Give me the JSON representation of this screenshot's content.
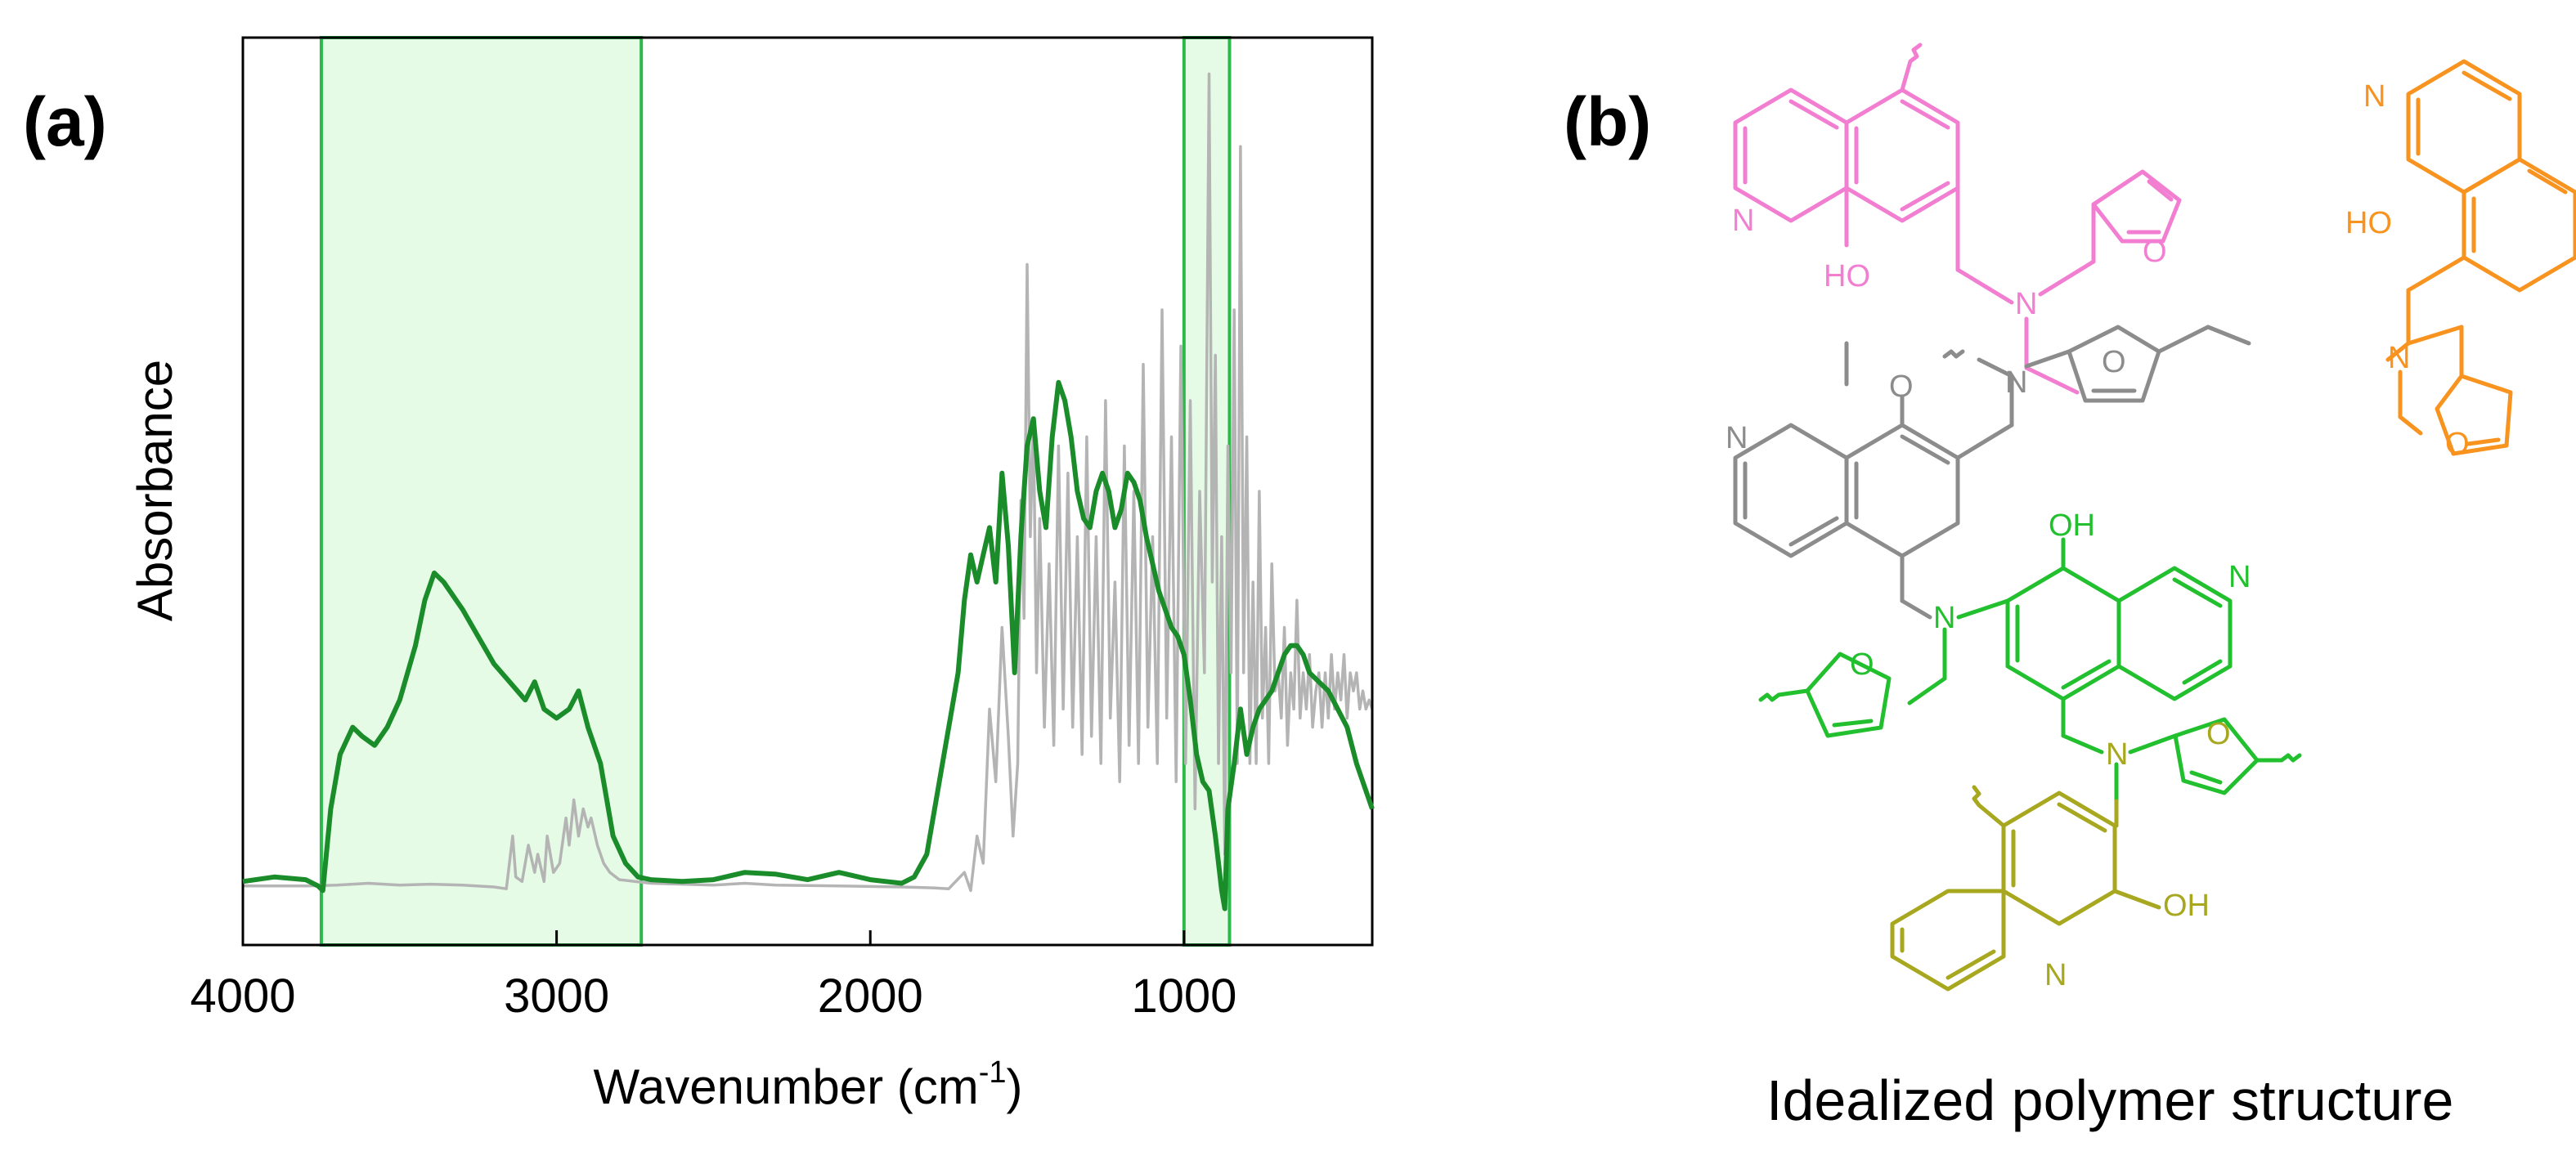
{
  "panel_a": {
    "label": "(a)",
    "chart_data": {
      "type": "line",
      "xlabel": "Wavenumber (cm",
      "xlabel_sup": "-1",
      "xlabel_close": ")",
      "ylabel": "Absorbance",
      "xlim": [
        4000,
        400
      ],
      "x_reversed": true,
      "ylim": [
        0,
        1.0
      ],
      "x_ticks": [
        4000,
        3000,
        2000,
        1000
      ],
      "x_tick_labels": [
        "4000",
        "3000",
        "2000",
        "1000"
      ],
      "y_ticks_shown": false,
      "grid": false,
      "highlight_bands": [
        {
          "x_from": 3750,
          "x_to": 2730,
          "color": "#e6fbe6",
          "edge": "#2db84b"
        },
        {
          "x_from": 1000,
          "x_to": 855,
          "color": "#e6fbe6",
          "edge": "#2db84b"
        }
      ],
      "series": [
        {
          "color": "#1a8c2a",
          "points": [
            [
              4000,
              0.07
            ],
            [
              3900,
              0.075
            ],
            [
              3800,
              0.072
            ],
            [
              3760,
              0.065
            ],
            [
              3745,
              0.06
            ],
            [
              3720,
              0.15
            ],
            [
              3690,
              0.21
            ],
            [
              3650,
              0.24
            ],
            [
              3620,
              0.23
            ],
            [
              3580,
              0.22
            ],
            [
              3540,
              0.24
            ],
            [
              3500,
              0.27
            ],
            [
              3450,
              0.33
            ],
            [
              3420,
              0.38
            ],
            [
              3390,
              0.41
            ],
            [
              3360,
              0.4
            ],
            [
              3300,
              0.37
            ],
            [
              3250,
              0.34
            ],
            [
              3200,
              0.31
            ],
            [
              3150,
              0.29
            ],
            [
              3100,
              0.27
            ],
            [
              3070,
              0.29
            ],
            [
              3040,
              0.26
            ],
            [
              3000,
              0.25
            ],
            [
              2960,
              0.26
            ],
            [
              2930,
              0.28
            ],
            [
              2900,
              0.24
            ],
            [
              2860,
              0.2
            ],
            [
              2820,
              0.12
            ],
            [
              2780,
              0.09
            ],
            [
              2740,
              0.075
            ],
            [
              2700,
              0.072
            ],
            [
              2600,
              0.07
            ],
            [
              2500,
              0.072
            ],
            [
              2400,
              0.08
            ],
            [
              2300,
              0.078
            ],
            [
              2200,
              0.072
            ],
            [
              2100,
              0.08
            ],
            [
              2000,
              0.072
            ],
            [
              1950,
              0.07
            ],
            [
              1900,
              0.068
            ],
            [
              1860,
              0.075
            ],
            [
              1820,
              0.1
            ],
            [
              1790,
              0.16
            ],
            [
              1760,
              0.22
            ],
            [
              1740,
              0.26
            ],
            [
              1720,
              0.3
            ],
            [
              1700,
              0.38
            ],
            [
              1680,
              0.43
            ],
            [
              1660,
              0.4
            ],
            [
              1640,
              0.43
            ],
            [
              1620,
              0.46
            ],
            [
              1600,
              0.4
            ],
            [
              1580,
              0.52
            ],
            [
              1560,
              0.44
            ],
            [
              1540,
              0.3
            ],
            [
              1520,
              0.45
            ],
            [
              1500,
              0.55
            ],
            [
              1480,
              0.58
            ],
            [
              1460,
              0.5
            ],
            [
              1440,
              0.46
            ],
            [
              1420,
              0.56
            ],
            [
              1400,
              0.62
            ],
            [
              1380,
              0.6
            ],
            [
              1360,
              0.56
            ],
            [
              1340,
              0.5
            ],
            [
              1320,
              0.47
            ],
            [
              1300,
              0.46
            ],
            [
              1280,
              0.5
            ],
            [
              1260,
              0.52
            ],
            [
              1240,
              0.5
            ],
            [
              1220,
              0.46
            ],
            [
              1200,
              0.48
            ],
            [
              1180,
              0.52
            ],
            [
              1160,
              0.51
            ],
            [
              1140,
              0.49
            ],
            [
              1120,
              0.45
            ],
            [
              1100,
              0.42
            ],
            [
              1080,
              0.39
            ],
            [
              1060,
              0.37
            ],
            [
              1040,
              0.35
            ],
            [
              1020,
              0.34
            ],
            [
              1000,
              0.32
            ],
            [
              980,
              0.27
            ],
            [
              960,
              0.21
            ],
            [
              940,
              0.18
            ],
            [
              920,
              0.17
            ],
            [
              900,
              0.12
            ],
            [
              880,
              0.06
            ],
            [
              870,
              0.04
            ],
            [
              860,
              0.15
            ],
            [
              840,
              0.2
            ],
            [
              820,
              0.26
            ],
            [
              800,
              0.21
            ],
            [
              780,
              0.24
            ],
            [
              760,
              0.26
            ],
            [
              740,
              0.27
            ],
            [
              720,
              0.28
            ],
            [
              700,
              0.3
            ],
            [
              680,
              0.32
            ],
            [
              660,
              0.33
            ],
            [
              640,
              0.33
            ],
            [
              620,
              0.32
            ],
            [
              600,
              0.3
            ],
            [
              570,
              0.29
            ],
            [
              540,
              0.28
            ],
            [
              510,
              0.26
            ],
            [
              480,
              0.24
            ],
            [
              450,
              0.2
            ],
            [
              420,
              0.17
            ],
            [
              400,
              0.15
            ]
          ]
        },
        {
          "color": "#b4b4b4",
          "points": [
            [
              4000,
              0.065
            ],
            [
              3800,
              0.065
            ],
            [
              3700,
              0.066
            ],
            [
              3600,
              0.068
            ],
            [
              3500,
              0.066
            ],
            [
              3400,
              0.067
            ],
            [
              3300,
              0.066
            ],
            [
              3200,
              0.064
            ],
            [
              3160,
              0.062
            ],
            [
              3140,
              0.12
            ],
            [
              3130,
              0.075
            ],
            [
              3110,
              0.07
            ],
            [
              3090,
              0.11
            ],
            [
              3070,
              0.08
            ],
            [
              3060,
              0.1
            ],
            [
              3040,
              0.07
            ],
            [
              3030,
              0.12
            ],
            [
              3010,
              0.08
            ],
            [
              2990,
              0.09
            ],
            [
              2970,
              0.14
            ],
            [
              2960,
              0.11
            ],
            [
              2945,
              0.16
            ],
            [
              2930,
              0.12
            ],
            [
              2915,
              0.15
            ],
            [
              2900,
              0.13
            ],
            [
              2890,
              0.14
            ],
            [
              2870,
              0.11
            ],
            [
              2850,
              0.09
            ],
            [
              2830,
              0.08
            ],
            [
              2800,
              0.072
            ],
            [
              2700,
              0.068
            ],
            [
              2500,
              0.066
            ],
            [
              2400,
              0.068
            ],
            [
              2300,
              0.066
            ],
            [
              2100,
              0.065
            ],
            [
              1900,
              0.064
            ],
            [
              1800,
              0.063
            ],
            [
              1750,
              0.062
            ],
            [
              1700,
              0.08
            ],
            [
              1680,
              0.06
            ],
            [
              1660,
              0.12
            ],
            [
              1640,
              0.09
            ],
            [
              1620,
              0.26
            ],
            [
              1600,
              0.18
            ],
            [
              1580,
              0.35
            ],
            [
              1560,
              0.23
            ],
            [
              1545,
              0.12
            ],
            [
              1530,
              0.2
            ],
            [
              1520,
              0.49
            ],
            [
              1510,
              0.36
            ],
            [
              1500,
              0.75
            ],
            [
              1490,
              0.45
            ],
            [
              1480,
              0.58
            ],
            [
              1470,
              0.3
            ],
            [
              1460,
              0.47
            ],
            [
              1445,
              0.24
            ],
            [
              1430,
              0.42
            ],
            [
              1415,
              0.22
            ],
            [
              1400,
              0.55
            ],
            [
              1385,
              0.26
            ],
            [
              1370,
              0.52
            ],
            [
              1355,
              0.24
            ],
            [
              1340,
              0.45
            ],
            [
              1325,
              0.21
            ],
            [
              1310,
              0.56
            ],
            [
              1295,
              0.23
            ],
            [
              1280,
              0.45
            ],
            [
              1265,
              0.2
            ],
            [
              1250,
              0.6
            ],
            [
              1235,
              0.25
            ],
            [
              1220,
              0.4
            ],
            [
              1205,
              0.18
            ],
            [
              1190,
              0.55
            ],
            [
              1175,
              0.22
            ],
            [
              1160,
              0.5
            ],
            [
              1145,
              0.2
            ],
            [
              1130,
              0.64
            ],
            [
              1115,
              0.24
            ],
            [
              1100,
              0.45
            ],
            [
              1085,
              0.2
            ],
            [
              1070,
              0.7
            ],
            [
              1055,
              0.25
            ],
            [
              1040,
              0.56
            ],
            [
              1025,
              0.18
            ],
            [
              1010,
              0.66
            ],
            [
              995,
              0.2
            ],
            [
              980,
              0.6
            ],
            [
              965,
              0.15
            ],
            [
              950,
              0.5
            ],
            [
              935,
              0.3
            ],
            [
              920,
              0.96
            ],
            [
              910,
              0.4
            ],
            [
              900,
              0.65
            ],
            [
              890,
              0.2
            ],
            [
              880,
              0.45
            ],
            [
              870,
              0.1
            ],
            [
              860,
              0.55
            ],
            [
              850,
              0.3
            ],
            [
              840,
              0.7
            ],
            [
              830,
              0.2
            ],
            [
              820,
              0.88
            ],
            [
              810,
              0.3
            ],
            [
              800,
              0.56
            ],
            [
              790,
              0.2
            ],
            [
              780,
              0.4
            ],
            [
              770,
              0.2
            ],
            [
              760,
              0.5
            ],
            [
              750,
              0.25
            ],
            [
              740,
              0.35
            ],
            [
              730,
              0.2
            ],
            [
              720,
              0.42
            ],
            [
              710,
              0.28
            ],
            [
              700,
              0.3
            ],
            [
              690,
              0.25
            ],
            [
              680,
              0.35
            ],
            [
              670,
              0.22
            ],
            [
              660,
              0.3
            ],
            [
              650,
              0.26
            ],
            [
              640,
              0.38
            ],
            [
              630,
              0.25
            ],
            [
              620,
              0.3
            ],
            [
              610,
              0.26
            ],
            [
              600,
              0.32
            ],
            [
              590,
              0.24
            ],
            [
              580,
              0.28
            ],
            [
              570,
              0.3
            ],
            [
              560,
              0.24
            ],
            [
              550,
              0.3
            ],
            [
              540,
              0.25
            ],
            [
              530,
              0.32
            ],
            [
              520,
              0.26
            ],
            [
              510,
              0.3
            ],
            [
              500,
              0.27
            ],
            [
              490,
              0.32
            ],
            [
              480,
              0.25
            ],
            [
              470,
              0.3
            ],
            [
              460,
              0.28
            ],
            [
              450,
              0.3
            ],
            [
              440,
              0.26
            ],
            [
              430,
              0.28
            ],
            [
              420,
              0.26
            ],
            [
              410,
              0.27
            ],
            [
              400,
              0.26
            ]
          ]
        }
      ]
    }
  },
  "panel_b": {
    "label": "(b)",
    "caption": "Idealized polymer structure",
    "colors": {
      "pink": "#f27ed2",
      "orange": "#f7931e",
      "gray": "#8c8c8c",
      "green": "#22c02e",
      "olive": "#a8a820"
    },
    "atom_labels": {
      "pink_n": "N",
      "pink_oh": "HO",
      "pink_furan_o": "O",
      "pink_amine_n": "N",
      "orange_n": "N",
      "orange_oh": "HO",
      "orange_furan_o": "O",
      "orange_amine_n": "N",
      "gray_ether_o": "O",
      "gray_n": "N",
      "gray_amine_n": "N",
      "gray_furan_o": "O",
      "green_oh": "OH",
      "green_n": "N",
      "green_amine_n": "N",
      "green_furan_o": "O",
      "green_amine2_n": "N",
      "green_furan2_o": "O",
      "olive_oh": "OH",
      "olive_n": "N"
    }
  }
}
